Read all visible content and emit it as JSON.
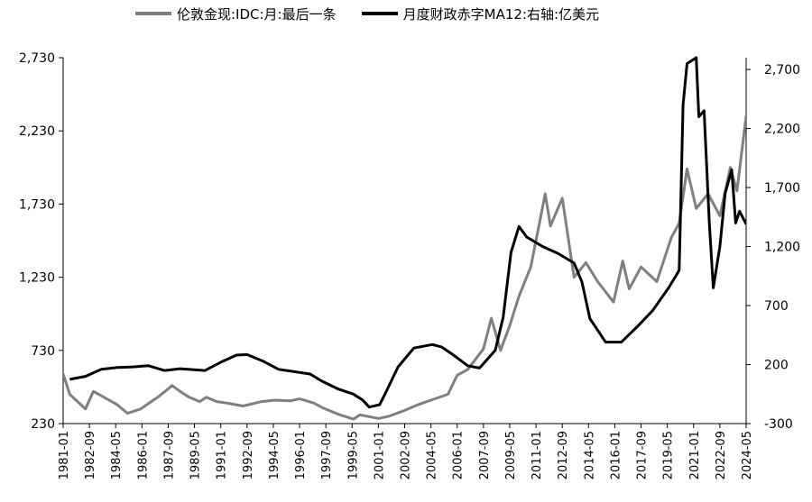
{
  "chart_data": {
    "type": "line",
    "legend_position": "top",
    "grid": false,
    "series": [
      {
        "name": "伦敦金现:IDC:月:最后一条",
        "axis": "left",
        "color": "#7f7f7f",
        "points": [
          [
            "1981-01",
            570
          ],
          [
            "1981-06",
            430
          ],
          [
            "1982-06",
            330
          ],
          [
            "1982-12",
            450
          ],
          [
            "1983-06",
            420
          ],
          [
            "1984-06",
            360
          ],
          [
            "1985-02",
            300
          ],
          [
            "1985-12",
            330
          ],
          [
            "1986-08",
            380
          ],
          [
            "1987-01",
            410
          ],
          [
            "1987-12",
            490
          ],
          [
            "1988-06",
            450
          ],
          [
            "1989-01",
            410
          ],
          [
            "1989-09",
            380
          ],
          [
            "1990-02",
            410
          ],
          [
            "1990-10",
            380
          ],
          [
            "1991-06",
            370
          ],
          [
            "1992-06",
            350
          ],
          [
            "1993-08",
            380
          ],
          [
            "1994-06",
            390
          ],
          [
            "1995-06",
            385
          ],
          [
            "1996-01",
            400
          ],
          [
            "1996-12",
            370
          ],
          [
            "1997-06",
            340
          ],
          [
            "1998-06",
            295
          ],
          [
            "1999-06",
            260
          ],
          [
            "1999-11",
            290
          ],
          [
            "2001-01",
            265
          ],
          [
            "2001-09",
            280
          ],
          [
            "2002-09",
            320
          ],
          [
            "2003-06",
            355
          ],
          [
            "2004-05",
            390
          ],
          [
            "2005-06",
            430
          ],
          [
            "2006-01",
            560
          ],
          [
            "2006-09",
            600
          ],
          [
            "2007-09",
            740
          ],
          [
            "2008-03",
            950
          ],
          [
            "2008-10",
            730
          ],
          [
            "2009-05",
            900
          ],
          [
            "2009-12",
            1100
          ],
          [
            "2010-09",
            1300
          ],
          [
            "2011-08",
            1800
          ],
          [
            "2011-12",
            1580
          ],
          [
            "2012-09",
            1770
          ],
          [
            "2013-06",
            1230
          ],
          [
            "2014-03",
            1330
          ],
          [
            "2014-12",
            1200
          ],
          [
            "2015-12",
            1060
          ],
          [
            "2016-07",
            1340
          ],
          [
            "2016-12",
            1150
          ],
          [
            "2017-09",
            1300
          ],
          [
            "2018-09",
            1200
          ],
          [
            "2019-08",
            1500
          ],
          [
            "2020-02",
            1600
          ],
          [
            "2020-08",
            1970
          ],
          [
            "2021-03",
            1700
          ],
          [
            "2021-12",
            1800
          ],
          [
            "2022-09",
            1650
          ],
          [
            "2023-05",
            1980
          ],
          [
            "2023-10",
            1820
          ],
          [
            "2024-05",
            2330
          ]
        ]
      },
      {
        "name": "月度财政赤字MA12:右轴:亿美元",
        "axis": "right",
        "color": "#000000",
        "points": [
          [
            "1981-06",
            75
          ],
          [
            "1982-06",
            100
          ],
          [
            "1983-06",
            160
          ],
          [
            "1984-06",
            175
          ],
          [
            "1985-06",
            180
          ],
          [
            "1986-06",
            190
          ],
          [
            "1987-06",
            150
          ],
          [
            "1988-06",
            165
          ],
          [
            "1990-01",
            150
          ],
          [
            "1991-01",
            220
          ],
          [
            "1992-01",
            280
          ],
          [
            "1992-09",
            285
          ],
          [
            "1993-09",
            230
          ],
          [
            "1994-09",
            160
          ],
          [
            "1995-09",
            140
          ],
          [
            "1996-09",
            120
          ],
          [
            "1997-06",
            60
          ],
          [
            "1998-06",
            -5
          ],
          [
            "1999-06",
            -50
          ],
          [
            "2000-01",
            -100
          ],
          [
            "2000-06",
            -160
          ],
          [
            "2001-02",
            -140
          ],
          [
            "2001-06",
            -50
          ],
          [
            "2002-04",
            180
          ],
          [
            "2003-04",
            340
          ],
          [
            "2004-06",
            370
          ],
          [
            "2005-01",
            350
          ],
          [
            "2005-09",
            290
          ],
          [
            "2006-09",
            190
          ],
          [
            "2007-06",
            170
          ],
          [
            "2008-06",
            320
          ],
          [
            "2008-12",
            600
          ],
          [
            "2009-06",
            1150
          ],
          [
            "2009-12",
            1370
          ],
          [
            "2010-06",
            1280
          ],
          [
            "2011-06",
            1200
          ],
          [
            "2012-06",
            1140
          ],
          [
            "2013-06",
            1060
          ],
          [
            "2013-12",
            900
          ],
          [
            "2014-06",
            590
          ],
          [
            "2015-06",
            390
          ],
          [
            "2016-06",
            390
          ],
          [
            "2017-06",
            520
          ],
          [
            "2018-06",
            660
          ],
          [
            "2019-06",
            850
          ],
          [
            "2019-12",
            960
          ],
          [
            "2020-02",
            1000
          ],
          [
            "2020-05",
            2400
          ],
          [
            "2020-08",
            2750
          ],
          [
            "2021-03",
            2800
          ],
          [
            "2021-05",
            2300
          ],
          [
            "2021-09",
            2350
          ],
          [
            "2022-01",
            1400
          ],
          [
            "2022-04",
            850
          ],
          [
            "2022-09",
            1200
          ],
          [
            "2023-01",
            1650
          ],
          [
            "2023-06",
            1850
          ],
          [
            "2023-09",
            1400
          ],
          [
            "2023-12",
            1500
          ],
          [
            "2024-05",
            1390
          ]
        ]
      }
    ],
    "y_left": {
      "ticks": [
        "2,730",
        "2,230",
        "1,730",
        "1,230",
        "730",
        "230"
      ],
      "range": [
        230,
        2730
      ]
    },
    "y_right": {
      "ticks": [
        "2,700",
        "2,200",
        "1,700",
        "1,200",
        "700",
        "200",
        "-300"
      ],
      "range": [
        -300,
        2800
      ]
    },
    "x_axis": {
      "range": [
        "1981-01",
        "2024-05"
      ],
      "tick_labels": [
        "1981-01",
        "1982-09",
        "1984-05",
        "1986-01",
        "1987-09",
        "1989-05",
        "1991-01",
        "1992-09",
        "1994-05",
        "1996-01",
        "1997-09",
        "1999-05",
        "2001-01",
        "2002-09",
        "2004-05",
        "2006-01",
        "2007-09",
        "2009-05",
        "2011-01",
        "2012-09",
        "2014-05",
        "2016-01",
        "2017-09",
        "2019-05",
        "2021-01",
        "2022-09",
        "2024-05"
      ]
    }
  }
}
